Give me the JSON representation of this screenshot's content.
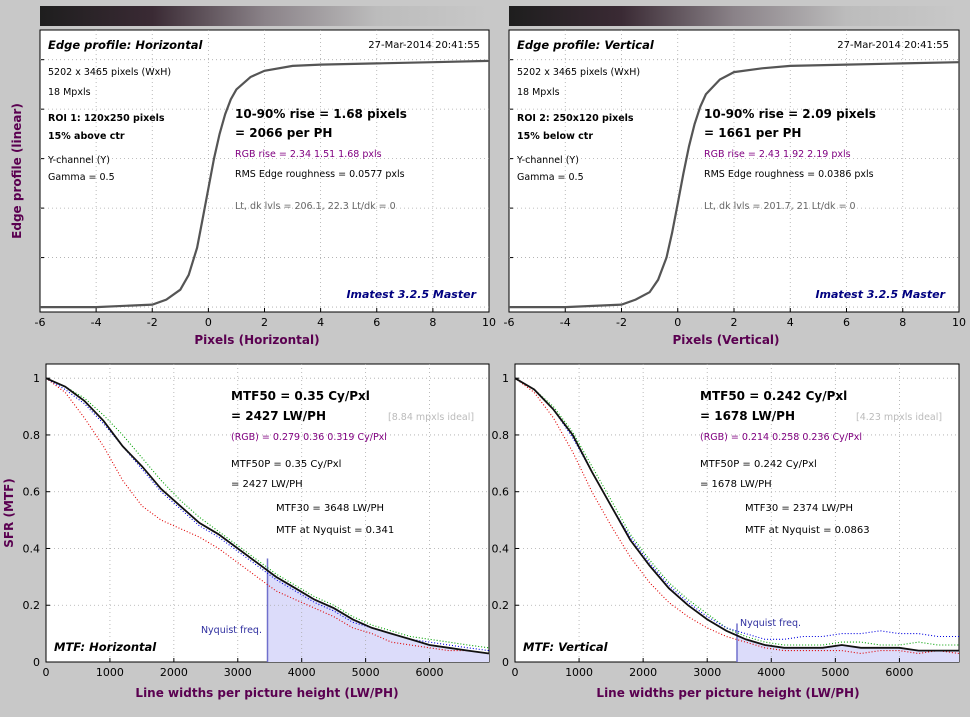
{
  "colors": {
    "background": "#c8c8c8",
    "plot_bg": "#ffffff",
    "axis_label": "#5a0050",
    "rgb_text": "#800080",
    "version_text": "#000080",
    "fill": "#dcdcfa",
    "nyquist_line": "#7070cc",
    "curve": "#555555",
    "red": "#e00000",
    "green": "#00a000",
    "blue": "#0000e0"
  },
  "panels": {
    "edge_h": {
      "title": "Edge profile: Horizontal",
      "date": "27-Mar-2014 20:41:55",
      "info": [
        "5202 x 3465 pixels (WxH)",
        "18 Mpxls",
        "ROI 1:  120x250 pixels",
        "15% above ctr",
        "Y-channel  (Y)",
        "Gamma = 0.5"
      ],
      "rise1": "10-90% rise = 1.68 pixels",
      "rise2": "= 2066 per PH",
      "rgb_rise": "RGB rise = 2.34  1.51  1.68 pxls",
      "roughness": "RMS Edge roughness = 0.0577 pxls",
      "levels": "Lt, dk lvls = 206.1, 22.3   Lt/dk = 0",
      "version": "Imatest 3.2.5 Master",
      "xlabel": "Pixels (Horizontal)"
    },
    "edge_v": {
      "title": "Edge profile: Vertical",
      "date": "27-Mar-2014 20:41:55",
      "info": [
        "5202 x 3465 pixels (WxH)",
        "18 Mpxls",
        "ROI 2:  250x120 pixels",
        "15% below ctr",
        "Y-channel  (Y)",
        "Gamma = 0.5"
      ],
      "rise1": "10-90% rise = 2.09 pixels",
      "rise2": "= 1661 per PH",
      "rgb_rise": "RGB rise = 2.43  1.92  2.19 pxls",
      "roughness": "RMS Edge roughness = 0.0386 pxls",
      "levels": "Lt, dk lvls = 201.7, 21   Lt/dk = 0",
      "version": "Imatest 3.2.5 Master",
      "xlabel": "Pixels (Vertical)"
    },
    "edge_ylabel": "Edge profile (linear)",
    "mtf_h": {
      "mtf50": "MTF50 = 0.35 Cy/Pxl",
      "mtf50_lw": "= 2427 LW/PH",
      "ideal": "[8.84 mpxls ideal]",
      "rgb": "(RGB) = 0.279  0.36  0.319 Cy/Pxl",
      "mtf50p": "MTF50P = 0.35 Cy/Pxl",
      "mtf50p_lw": "= 2427 LW/PH",
      "mtf30": "MTF30 = 3648 LW/PH",
      "nyq_val": "MTF at Nyquist = 0.341",
      "nyq_label": "Nyquist freq.",
      "corner": "MTF: Horizontal",
      "xlabel": "Line widths per picture height (LW/PH)"
    },
    "mtf_v": {
      "mtf50": "MTF50 = 0.242 Cy/Pxl",
      "mtf50_lw": "= 1678 LW/PH",
      "ideal": "[4.23 mpxls ideal]",
      "rgb": "(RGB) = 0.214  0.258  0.236 Cy/Pxl",
      "mtf50p": "MTF50P = 0.242 Cy/Pxl",
      "mtf50p_lw": "= 1678 LW/PH",
      "mtf30": "MTF30 = 2374 LW/PH",
      "nyq_val": "MTF at Nyquist = 0.0863",
      "nyq_label": "Nyquist freq.",
      "corner": "MTF: Vertical",
      "xlabel": "Line widths per picture height (LW/PH)"
    },
    "mtf_ylabel": "SFR (MTF)"
  },
  "chart_data": [
    {
      "type": "line",
      "id": "edge_h",
      "xlim": [
        -6,
        10
      ],
      "xticks": [
        "-6",
        "-4",
        "-2",
        "0",
        "2",
        "4",
        "6",
        "8",
        "10"
      ],
      "grid": true,
      "series": [
        {
          "x": [
            -6,
            -4,
            -2,
            -1.5,
            -1,
            -0.7,
            -0.4,
            -0.2,
            0,
            0.2,
            0.4,
            0.6,
            0.8,
            1,
            1.5,
            2,
            3,
            4,
            6,
            8,
            10
          ],
          "y": [
            0.0,
            0.0,
            0.01,
            0.03,
            0.07,
            0.13,
            0.24,
            0.36,
            0.48,
            0.6,
            0.7,
            0.78,
            0.84,
            0.88,
            0.93,
            0.955,
            0.975,
            0.98,
            0.985,
            0.99,
            0.995
          ]
        }
      ]
    },
    {
      "type": "line",
      "id": "edge_v",
      "xlim": [
        -6,
        10
      ],
      "xticks": [
        "-6",
        "-4",
        "-2",
        "0",
        "2",
        "4",
        "6",
        "8",
        "10"
      ],
      "grid": true,
      "series": [
        {
          "x": [
            -6,
            -4,
            -2,
            -1.5,
            -1,
            -0.7,
            -0.4,
            -0.2,
            0,
            0.2,
            0.4,
            0.6,
            0.8,
            1,
            1.5,
            2,
            3,
            4,
            6,
            8,
            10
          ],
          "y": [
            0.0,
            0.0,
            0.01,
            0.03,
            0.06,
            0.11,
            0.2,
            0.3,
            0.42,
            0.54,
            0.65,
            0.74,
            0.81,
            0.86,
            0.92,
            0.95,
            0.965,
            0.975,
            0.98,
            0.985,
            0.99
          ]
        }
      ]
    },
    {
      "type": "line",
      "id": "mtf_h",
      "xlim": [
        0,
        6930
      ],
      "ylim": [
        0,
        1.05
      ],
      "xticks": [
        0,
        1000,
        2000,
        3000,
        4000,
        5000,
        6000
      ],
      "yticks": [
        0,
        0.2,
        0.4,
        0.6,
        0.8,
        1
      ],
      "nyquist_x": 3465,
      "grid": true,
      "series": [
        {
          "name": "Y",
          "x": [
            0,
            300,
            600,
            900,
            1200,
            1500,
            1800,
            2100,
            2400,
            2700,
            3000,
            3300,
            3600,
            3900,
            4200,
            4500,
            4800,
            5100,
            5400,
            5700,
            6000,
            6300,
            6600,
            6930
          ],
          "y": [
            1.0,
            0.97,
            0.92,
            0.85,
            0.76,
            0.69,
            0.61,
            0.55,
            0.49,
            0.45,
            0.4,
            0.35,
            0.3,
            0.26,
            0.22,
            0.19,
            0.15,
            0.12,
            0.1,
            0.08,
            0.06,
            0.05,
            0.04,
            0.03
          ]
        },
        {
          "name": "R",
          "x": [
            0,
            300,
            600,
            900,
            1200,
            1500,
            1800,
            2100,
            2400,
            2700,
            3000,
            3300,
            3600,
            3900,
            4200,
            4500,
            4800,
            5100,
            5400,
            5700,
            6000,
            6300,
            6600,
            6930
          ],
          "y": [
            1.0,
            0.95,
            0.86,
            0.76,
            0.64,
            0.55,
            0.5,
            0.47,
            0.44,
            0.4,
            0.35,
            0.3,
            0.25,
            0.22,
            0.19,
            0.16,
            0.12,
            0.1,
            0.07,
            0.06,
            0.05,
            0.04,
            0.04,
            0.03
          ]
        },
        {
          "name": "G",
          "x": [
            0,
            300,
            600,
            900,
            1200,
            1500,
            1800,
            2100,
            2400,
            2700,
            3000,
            3300,
            3600,
            3900,
            4200,
            4500,
            4800,
            5100,
            5400,
            5700,
            6000,
            6300,
            6600,
            6930
          ],
          "y": [
            1.0,
            0.97,
            0.93,
            0.87,
            0.8,
            0.72,
            0.64,
            0.57,
            0.51,
            0.46,
            0.41,
            0.36,
            0.31,
            0.27,
            0.23,
            0.2,
            0.16,
            0.13,
            0.11,
            0.09,
            0.08,
            0.07,
            0.06,
            0.05
          ]
        },
        {
          "name": "B",
          "x": [
            0,
            300,
            600,
            900,
            1200,
            1500,
            1800,
            2100,
            2400,
            2700,
            3000,
            3300,
            3600,
            3900,
            4200,
            4500,
            4800,
            5100,
            5400,
            5700,
            6000,
            6300,
            6600,
            6930
          ],
          "y": [
            1.0,
            0.96,
            0.91,
            0.84,
            0.76,
            0.68,
            0.6,
            0.54,
            0.48,
            0.44,
            0.39,
            0.34,
            0.29,
            0.25,
            0.21,
            0.18,
            0.14,
            0.12,
            0.1,
            0.08,
            0.07,
            0.06,
            0.05,
            0.04
          ]
        }
      ]
    },
    {
      "type": "line",
      "id": "mtf_v",
      "xlim": [
        0,
        6930
      ],
      "ylim": [
        0,
        1.05
      ],
      "xticks": [
        0,
        1000,
        2000,
        3000,
        4000,
        5000,
        6000
      ],
      "yticks": [
        0,
        0.2,
        0.4,
        0.6,
        0.8,
        1
      ],
      "nyquist_x": 3465,
      "grid": true,
      "series": [
        {
          "name": "Y",
          "x": [
            0,
            300,
            600,
            900,
            1200,
            1500,
            1800,
            2100,
            2400,
            2700,
            3000,
            3300,
            3600,
            3900,
            4200,
            4500,
            4800,
            5100,
            5400,
            5700,
            6000,
            6300,
            6600,
            6930
          ],
          "y": [
            1.0,
            0.96,
            0.89,
            0.8,
            0.67,
            0.55,
            0.43,
            0.34,
            0.26,
            0.2,
            0.15,
            0.11,
            0.08,
            0.06,
            0.05,
            0.05,
            0.05,
            0.06,
            0.05,
            0.05,
            0.05,
            0.04,
            0.04,
            0.04
          ]
        },
        {
          "name": "R",
          "x": [
            0,
            300,
            600,
            900,
            1200,
            1500,
            1800,
            2100,
            2400,
            2700,
            3000,
            3300,
            3600,
            3900,
            4200,
            4500,
            4800,
            5100,
            5400,
            5700,
            6000,
            6300,
            6600,
            6930
          ],
          "y": [
            1.0,
            0.95,
            0.86,
            0.74,
            0.6,
            0.48,
            0.37,
            0.28,
            0.21,
            0.16,
            0.12,
            0.09,
            0.07,
            0.05,
            0.04,
            0.04,
            0.04,
            0.04,
            0.03,
            0.04,
            0.04,
            0.03,
            0.04,
            0.03
          ]
        },
        {
          "name": "G",
          "x": [
            0,
            300,
            600,
            900,
            1200,
            1500,
            1800,
            2100,
            2400,
            2700,
            3000,
            3300,
            3600,
            3900,
            4200,
            4500,
            4800,
            5100,
            5400,
            5700,
            6000,
            6300,
            6600,
            6930
          ],
          "y": [
            1.0,
            0.96,
            0.9,
            0.81,
            0.69,
            0.57,
            0.45,
            0.36,
            0.28,
            0.22,
            0.17,
            0.12,
            0.09,
            0.07,
            0.06,
            0.06,
            0.06,
            0.07,
            0.07,
            0.06,
            0.06,
            0.07,
            0.06,
            0.06
          ]
        },
        {
          "name": "B",
          "x": [
            0,
            300,
            600,
            900,
            1200,
            1500,
            1800,
            2100,
            2400,
            2700,
            3000,
            3300,
            3600,
            3900,
            4200,
            4500,
            4800,
            5100,
            5400,
            5700,
            6000,
            6300,
            6600,
            6930
          ],
          "y": [
            1.0,
            0.96,
            0.89,
            0.79,
            0.67,
            0.55,
            0.44,
            0.35,
            0.27,
            0.21,
            0.16,
            0.12,
            0.1,
            0.08,
            0.08,
            0.09,
            0.09,
            0.1,
            0.1,
            0.11,
            0.1,
            0.1,
            0.09,
            0.09
          ]
        }
      ]
    }
  ]
}
